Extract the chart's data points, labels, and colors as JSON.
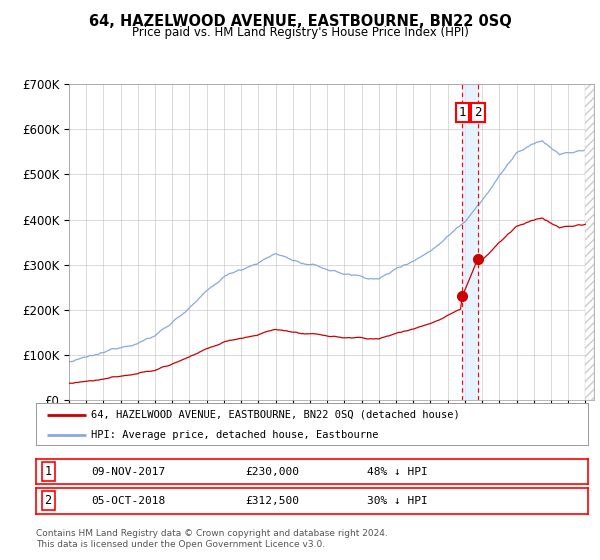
{
  "title": "64, HAZELWOOD AVENUE, EASTBOURNE, BN22 0SQ",
  "subtitle": "Price paid vs. HM Land Registry's House Price Index (HPI)",
  "ylabel_ticks": [
    "£0",
    "£100K",
    "£200K",
    "£300K",
    "£400K",
    "£500K",
    "£600K",
    "£700K"
  ],
  "ytick_values": [
    0,
    100000,
    200000,
    300000,
    400000,
    500000,
    600000,
    700000
  ],
  "ylim": [
    0,
    700000
  ],
  "xlim_start": 1995.0,
  "xlim_end": 2025.5,
  "legend_line1": "64, HAZELWOOD AVENUE, EASTBOURNE, BN22 0SQ (detached house)",
  "legend_line2": "HPI: Average price, detached house, Eastbourne",
  "line1_color": "#cc0000",
  "line2_color": "#88aadd",
  "event1_x": 2017.86,
  "event1_y": 230000,
  "event1_label": "1",
  "event2_x": 2018.75,
  "event2_y": 312500,
  "event2_label": "2",
  "shade_color": "#ddeeff",
  "footer": "Contains HM Land Registry data © Crown copyright and database right 2024.\nThis data is licensed under the Open Government Licence v3.0.",
  "table_rows": [
    [
      "1",
      "09-NOV-2017",
      "£230,000",
      "48% ↓ HPI"
    ],
    [
      "2",
      "05-OCT-2018",
      "£312,500",
      "30% ↓ HPI"
    ]
  ],
  "background_color": "#ffffff",
  "grid_color": "#cccccc"
}
